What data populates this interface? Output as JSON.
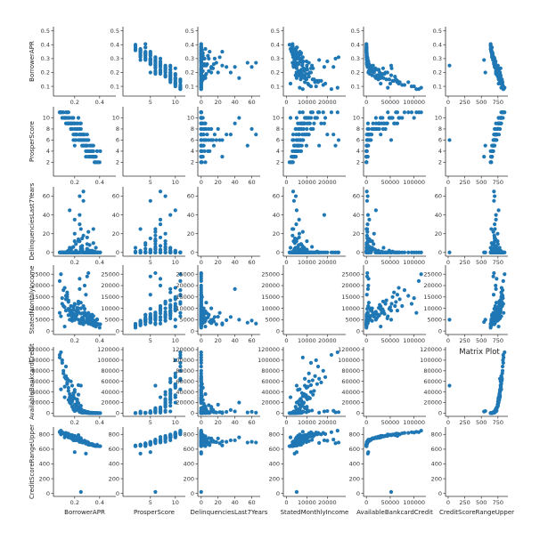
{
  "figure": {
    "title": "Matrix Plot"
  },
  "chart_data": {
    "type": "scatter",
    "title": "Matrix Plot",
    "marker_color": "#1f77b4",
    "grid": false,
    "diagonal": "empty",
    "variables": [
      {
        "name": "BorrowerAPR",
        "range": [
          0.03,
          0.53
        ],
        "xticks": [
          0.2,
          0.4
        ],
        "yticks": [
          0.1,
          0.2,
          0.3,
          0.4,
          0.5
        ],
        "xtick_labels": [
          "0.2",
          "0.4"
        ],
        "ytick_labels": [
          "0.1",
          "0.2",
          "0.3",
          "0.4",
          "0.5"
        ]
      },
      {
        "name": "ProsperScore",
        "range": [
          -0.5,
          12
        ],
        "xticks": [
          5,
          10
        ],
        "yticks": [
          2,
          4,
          6,
          8,
          10
        ],
        "xtick_labels": [
          "5",
          "10"
        ],
        "ytick_labels": [
          "2",
          "4",
          "6",
          "8",
          "10"
        ]
      },
      {
        "name": "DelinquenciesLast7Years",
        "range": [
          -4,
          70
        ],
        "xticks": [
          0,
          20,
          40,
          60
        ],
        "yticks": [
          0,
          20,
          40,
          60
        ],
        "xtick_labels": [
          "0",
          "20",
          "40",
          "60"
        ],
        "ytick_labels": [
          "0",
          "20",
          "40",
          "60"
        ]
      },
      {
        "name": "StatedMonthlyIncome",
        "range": [
          -1500,
          29000
        ],
        "xticks": [
          0,
          10000,
          20000
        ],
        "yticks": [
          0,
          5000,
          10000,
          15000,
          20000,
          25000
        ],
        "xtick_labels": [
          "0",
          "10000",
          "20000"
        ],
        "ytick_labels": [
          "0",
          "5000",
          "10000",
          "15000",
          "20000",
          "25000"
        ]
      },
      {
        "name": "AvailableBankcardCredit",
        "range": [
          -6000,
          125000
        ],
        "xticks": [
          0,
          50000,
          100000
        ],
        "yticks": [
          0,
          20000,
          40000,
          60000,
          80000,
          100000,
          120000
        ],
        "xtick_labels": [
          "0",
          "50000",
          "100000"
        ],
        "ytick_labels": [
          "0",
          "20000",
          "40000",
          "60000",
          "80000",
          "100000",
          "120000"
        ]
      },
      {
        "name": "CreditScoreRangeUpper",
        "range": [
          -40,
          900
        ],
        "xticks": [
          0,
          250,
          500,
          750
        ],
        "yticks": [
          0,
          200,
          400,
          600,
          800
        ],
        "xtick_labels": [
          "0",
          "250",
          "500",
          "750"
        ],
        "ytick_labels": [
          "0",
          "200",
          "400",
          "600",
          "800"
        ]
      }
    ],
    "observations": [
      [
        0.12,
        10,
        0,
        2000,
        30000,
        760
      ],
      [
        0.09,
        11,
        0,
        6500,
        45000,
        800
      ],
      [
        0.13,
        9,
        0,
        9000,
        65000,
        780
      ],
      [
        0.15,
        9,
        2,
        7000,
        25000,
        760
      ],
      [
        0.18,
        8,
        5,
        4500,
        12000,
        740
      ],
      [
        0.21,
        7,
        0,
        6000,
        5000,
        720
      ],
      [
        0.24,
        6,
        12,
        3500,
        3000,
        700
      ],
      [
        0.27,
        5,
        0,
        5200,
        1500,
        690
      ],
      [
        0.3,
        4,
        4,
        4000,
        800,
        680
      ],
      [
        0.33,
        3,
        0,
        3000,
        300,
        660
      ],
      [
        0.36,
        2,
        1,
        3200,
        200,
        650
      ],
      [
        0.38,
        4,
        0,
        5000,
        600,
        660
      ],
      [
        0.31,
        6,
        22,
        8000,
        2000,
        680
      ],
      [
        0.2,
        8,
        0,
        12000,
        40000,
        780
      ],
      [
        0.17,
        9,
        0,
        11000,
        60000,
        790
      ],
      [
        0.14,
        10,
        1,
        15000,
        55000,
        800
      ],
      [
        0.25,
        7,
        3,
        10000,
        8000,
        720
      ],
      [
        0.29,
        5,
        0,
        7500,
        1000,
        690
      ],
      [
        0.32,
        4,
        8,
        6000,
        400,
        670
      ],
      [
        0.35,
        3,
        0,
        2500,
        100,
        650
      ],
      [
        0.22,
        9,
        0,
        8500,
        20000,
        760
      ],
      [
        0.19,
        6,
        6,
        5600,
        7000,
        720
      ],
      [
        0.16,
        10,
        0,
        9500,
        30000,
        780
      ],
      [
        0.26,
        5,
        15,
        4200,
        1800,
        700
      ],
      [
        0.34,
        3,
        2,
        3600,
        250,
        655
      ],
      [
        0.23,
        8,
        0,
        13000,
        35000,
        770
      ],
      [
        0.28,
        6,
        0,
        6800,
        3500,
        710
      ],
      [
        0.11,
        11,
        0,
        18000,
        80000,
        820
      ],
      [
        0.08,
        11,
        0,
        22000,
        110000,
        830
      ],
      [
        0.37,
        2,
        5,
        2000,
        150,
        640
      ],
      [
        0.4,
        2,
        0,
        1500,
        50,
        640
      ],
      [
        0.21,
        8,
        9,
        7200,
        15000,
        750
      ],
      [
        0.18,
        9,
        0,
        6600,
        25000,
        770
      ],
      [
        0.24,
        7,
        30,
        4800,
        2400,
        700
      ],
      [
        0.29,
        5,
        0,
        3900,
        700,
        680
      ],
      [
        0.15,
        10,
        2,
        9800,
        48000,
        790
      ],
      [
        0.33,
        4,
        0,
        7000,
        900,
        670
      ],
      [
        0.26,
        6,
        4,
        5800,
        5500,
        710
      ],
      [
        0.13,
        10,
        0,
        14000,
        70000,
        800
      ],
      [
        0.2,
        7,
        35,
        6200,
        6000,
        720
      ],
      [
        0.31,
        4,
        0,
        4400,
        500,
        665
      ],
      [
        0.27,
        6,
        18,
        3000,
        1200,
        695
      ],
      [
        0.17,
        9,
        1,
        8000,
        32000,
        780
      ],
      [
        0.1,
        11,
        0,
        12000,
        95000,
        830
      ],
      [
        0.36,
        3,
        0,
        4600,
        300,
        650
      ],
      [
        0.23,
        8,
        12,
        10000,
        12000,
        745
      ],
      [
        0.34,
        5,
        0,
        5400,
        800,
        670
      ],
      [
        0.19,
        9,
        0,
        7600,
        38000,
        775
      ],
      [
        0.28,
        7,
        0,
        20000,
        4000,
        715
      ],
      [
        0.25,
        6,
        25,
        3400,
        1600,
        705
      ],
      [
        0.14,
        11,
        0,
        16000,
        65000,
        810
      ],
      [
        0.3,
        5,
        3,
        6400,
        1100,
        685
      ],
      [
        0.22,
        7,
        0,
        9200,
        9000,
        730
      ],
      [
        0.16,
        10,
        45,
        5000,
        20000,
        760
      ],
      [
        0.32,
        3,
        0,
        3800,
        350,
        660
      ],
      [
        0.2,
        9,
        0,
        11500,
        28000,
        770
      ],
      [
        0.26,
        7,
        7,
        7800,
        3000,
        705
      ],
      [
        0.12,
        10,
        0,
        10500,
        50000,
        795
      ],
      [
        0.35,
        4,
        10,
        4100,
        450,
        655
      ],
      [
        0.29,
        6,
        0,
        6900,
        1300,
        690
      ],
      [
        0.18,
        8,
        0,
        5800,
        22000,
        750
      ],
      [
        0.24,
        8,
        60,
        4600,
        2600,
        700
      ],
      [
        0.09,
        11,
        0,
        25000,
        115000,
        850
      ],
      [
        0.38,
        2,
        0,
        2800,
        120,
        645
      ],
      [
        0.21,
        7,
        2,
        8800,
        11000,
        735
      ],
      [
        0.3,
        4,
        0,
        5300,
        650,
        675
      ],
      [
        0.15,
        9,
        0,
        13500,
        42000,
        785
      ],
      [
        0.27,
        5,
        55,
        3700,
        1400,
        690
      ],
      [
        0.33,
        5,
        0,
        6100,
        700,
        665
      ],
      [
        0.19,
        10,
        0,
        9600,
        34000,
        780
      ],
      [
        0.23,
        6,
        14,
        5000,
        6500,
        715
      ],
      [
        0.36,
        3,
        0,
        4300,
        250,
        650
      ],
      [
        0.14,
        9,
        0,
        17000,
        58000,
        800
      ],
      [
        0.25,
        8,
        6,
        12500,
        5000,
        725
      ],
      [
        0.31,
        3,
        0,
        3300,
        300,
        660
      ],
      [
        0.2,
        8,
        20,
        6300,
        16000,
        745
      ],
      [
        0.28,
        6,
        0,
        8200,
        2800,
        700
      ],
      [
        0.11,
        10,
        0,
        11000,
        75000,
        815
      ],
      [
        0.34,
        4,
        1,
        4700,
        500,
        660
      ],
      [
        0.22,
        9,
        0,
        10200,
        26000,
        765
      ],
      [
        0.17,
        8,
        3,
        7400,
        18000,
        750
      ],
      [
        0.39,
        2,
        0,
        3100,
        80,
        640
      ],
      [
        0.26,
        5,
        0,
        5500,
        900,
        690
      ],
      [
        0.13,
        11,
        0,
        15500,
        88000,
        820
      ],
      [
        0.3,
        6,
        9,
        7100,
        2100,
        690
      ],
      [
        0.24,
        7,
        0,
        23000,
        4500,
        730
      ],
      [
        0.18,
        10,
        0,
        9000,
        52000,
        790
      ],
      [
        0.35,
        3,
        25,
        2900,
        200,
        650
      ],
      [
        0.21,
        6,
        0,
        6700,
        9500,
        725
      ],
      [
        0.29,
        4,
        0,
        4100,
        600,
        675
      ],
      [
        0.16,
        9,
        5,
        8700,
        36000,
        775
      ],
      [
        0.27,
        7,
        0,
        11000,
        3800,
        710
      ],
      [
        0.32,
        5,
        2,
        5700,
        750,
        670
      ],
      [
        0.12,
        10,
        0,
        19000,
        68000,
        805
      ],
      [
        0.37,
        3,
        0,
        3500,
        180,
        645
      ],
      [
        0.23,
        8,
        0,
        8400,
        19000,
        755
      ],
      [
        0.2,
        6,
        12,
        4900,
        8000,
        730
      ],
      [
        0.28,
        5,
        0,
        9800,
        1700,
        695
      ],
      [
        0.15,
        11,
        0,
        12800,
        62000,
        810
      ],
      [
        0.25,
        9,
        4,
        7700,
        14000,
        750
      ],
      [
        0.33,
        4,
        0,
        5100,
        550,
        665
      ],
      [
        0.1,
        10,
        0,
        14500,
        100000,
        825
      ],
      [
        0.3,
        7,
        16,
        6200,
        2300,
        700
      ],
      [
        0.22,
        8,
        0,
        7300,
        24000,
        760
      ],
      [
        0.36,
        2,
        0,
        2300,
        140,
        645
      ],
      [
        0.19,
        7,
        0,
        10800,
        30000,
        765
      ],
      [
        0.26,
        6,
        3,
        5900,
        4200,
        705
      ],
      [
        0.35,
        5,
        0,
        6600,
        380,
        660
      ],
      [
        0.24,
        9,
        40,
        18500,
        3300,
        720
      ],
      [
        0.17,
        8,
        0,
        6900,
        27000,
        755
      ],
      [
        0.29,
        5,
        0,
        16000,
        1000,
        685
      ],
      [
        0.31,
        6,
        0,
        25500,
        1900,
        690
      ],
      [
        0.405,
        4,
        0,
        3000,
        50,
        640
      ],
      [
        0.08,
        11,
        0,
        8000,
        105000,
        835
      ],
      [
        0.27,
        7,
        65,
        3300,
        900,
        690
      ],
      [
        0.2,
        9,
        0,
        5600,
        44000,
        780
      ],
      [
        0.34,
        4,
        0,
        7200,
        420,
        660
      ],
      [
        0.23,
        10,
        0,
        12000,
        53000,
        790
      ],
      [
        0.3,
        5,
        0,
        24000,
        1500,
        680
      ],
      [
        0.38,
        4,
        0,
        5200,
        220,
        650
      ],
      [
        0.25,
        6,
        0,
        5000,
        52000,
        20
      ],
      [
        0.29,
        3,
        0,
        4000,
        3000,
        540
      ],
      [
        0.2,
        5,
        0,
        5000,
        4000,
        560
      ]
    ]
  }
}
